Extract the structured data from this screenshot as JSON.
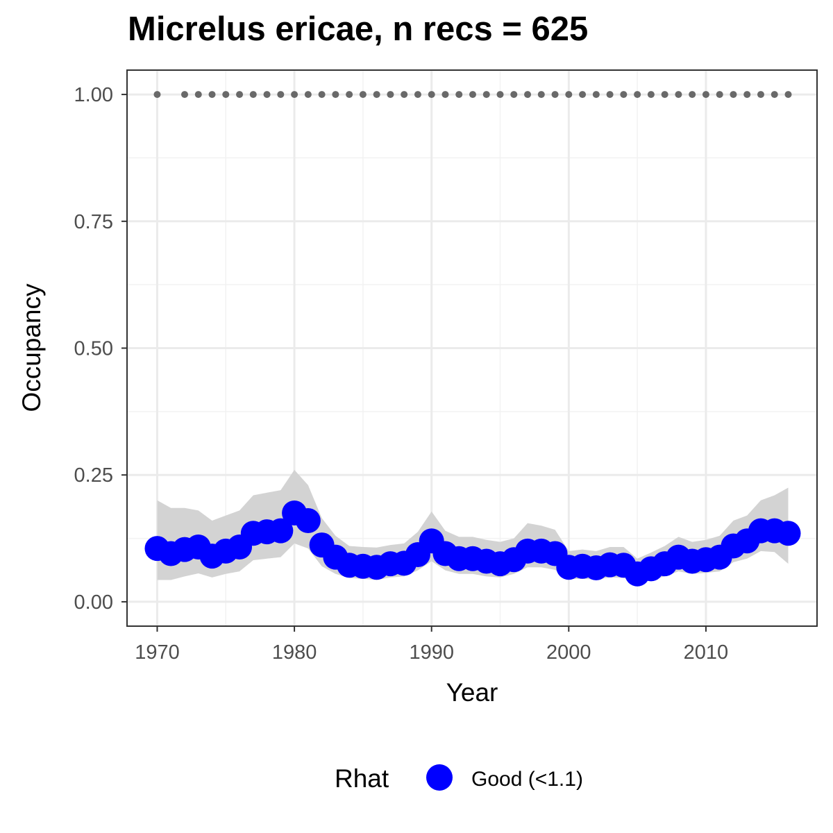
{
  "chart_data": {
    "type": "line",
    "title": "Micrelus ericae, n recs = 625",
    "xlabel": "Year",
    "ylabel": "Occupancy",
    "xlim": [
      1967.8,
      2018.1
    ],
    "ylim": [
      -0.048,
      1.048
    ],
    "x_ticks": [
      "1970",
      "1980",
      "1990",
      "2000",
      "2010"
    ],
    "y_ticks": [
      "0.00",
      "0.25",
      "0.50",
      "0.75",
      "1.00"
    ],
    "grid": true,
    "x": [
      1970,
      1971,
      1972,
      1973,
      1974,
      1975,
      1976,
      1977,
      1978,
      1979,
      1980,
      1981,
      1982,
      1983,
      1984,
      1985,
      1986,
      1987,
      1988,
      1989,
      1990,
      1991,
      1992,
      1993,
      1994,
      1995,
      1996,
      1997,
      1998,
      1999,
      2000,
      2001,
      2002,
      2003,
      2004,
      2005,
      2006,
      2007,
      2008,
      2009,
      2010,
      2011,
      2012,
      2013,
      2014,
      2015,
      2016
    ],
    "series": [
      {
        "values": [
          0.105,
          0.095,
          0.103,
          0.108,
          0.09,
          0.1,
          0.108,
          0.135,
          0.138,
          0.14,
          0.175,
          0.16,
          0.112,
          0.088,
          0.072,
          0.07,
          0.068,
          0.075,
          0.076,
          0.093,
          0.12,
          0.095,
          0.085,
          0.085,
          0.08,
          0.075,
          0.083,
          0.1,
          0.1,
          0.095,
          0.068,
          0.07,
          0.067,
          0.073,
          0.072,
          0.055,
          0.065,
          0.075,
          0.088,
          0.08,
          0.083,
          0.088,
          0.11,
          0.12,
          0.14,
          0.14,
          0.135
        ],
        "lower": [
          0.043,
          0.043,
          0.05,
          0.056,
          0.048,
          0.055,
          0.06,
          0.082,
          0.085,
          0.088,
          0.115,
          0.105,
          0.07,
          0.055,
          0.047,
          0.045,
          0.043,
          0.048,
          0.05,
          0.062,
          0.08,
          0.062,
          0.055,
          0.055,
          0.05,
          0.048,
          0.055,
          0.068,
          0.068,
          0.063,
          0.045,
          0.045,
          0.044,
          0.048,
          0.047,
          0.038,
          0.043,
          0.05,
          0.06,
          0.055,
          0.057,
          0.06,
          0.078,
          0.085,
          0.1,
          0.098,
          0.075
        ],
        "upper": [
          0.2,
          0.185,
          0.185,
          0.18,
          0.16,
          0.17,
          0.18,
          0.21,
          0.215,
          0.22,
          0.26,
          0.23,
          0.165,
          0.13,
          0.11,
          0.108,
          0.107,
          0.112,
          0.115,
          0.138,
          0.178,
          0.14,
          0.128,
          0.128,
          0.122,
          0.118,
          0.125,
          0.155,
          0.15,
          0.142,
          0.1,
          0.103,
          0.1,
          0.108,
          0.108,
          0.085,
          0.097,
          0.11,
          0.128,
          0.118,
          0.122,
          0.13,
          0.16,
          0.17,
          0.2,
          0.21,
          0.225
        ],
        "color": "#0000ff",
        "ribbon_color": "#d3d3d3"
      }
    ],
    "record_years": [
      1970,
      1972,
      1973,
      1974,
      1975,
      1976,
      1977,
      1978,
      1979,
      1980,
      1981,
      1982,
      1983,
      1984,
      1985,
      1986,
      1987,
      1988,
      1989,
      1990,
      1991,
      1992,
      1993,
      1994,
      1995,
      1996,
      1997,
      1998,
      1999,
      2000,
      2001,
      2002,
      2003,
      2004,
      2005,
      2006,
      2007,
      2008,
      2009,
      2010,
      2011,
      2012,
      2013,
      2014,
      2015,
      2016
    ],
    "record_value": 1.0,
    "record_color": "#696969",
    "legend": {
      "title": "Rhat",
      "label": "Good (<1.1)",
      "color": "#0000ff",
      "position": "bottom"
    }
  }
}
